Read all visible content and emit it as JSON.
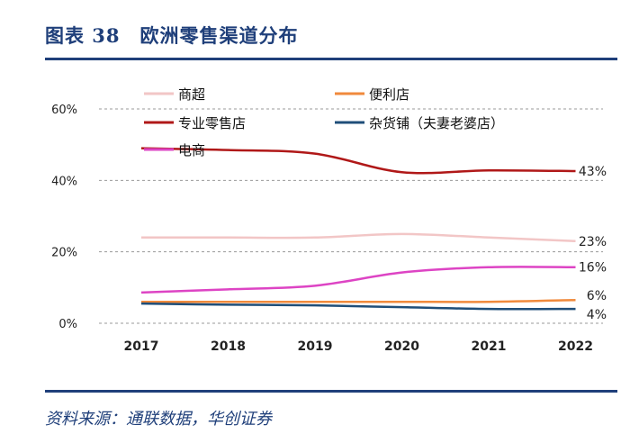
{
  "figure": {
    "title": "图表 38　欧洲零售渠道分布",
    "source": "资料来源：通联数据，华创证券"
  },
  "chart_data": {
    "type": "line",
    "x": [
      "2017",
      "2018",
      "2019",
      "2020",
      "2021",
      "2022"
    ],
    "y_ticks": [
      "0%",
      "20%",
      "40%",
      "60%"
    ],
    "ylim": [
      0,
      60
    ],
    "grid": "horizontal-dashed",
    "legend_position": "top-left",
    "series": [
      {
        "name": "商超",
        "color": "#f2c6c6",
        "values": [
          24,
          24,
          24,
          25,
          24,
          23
        ],
        "end_label": "23%"
      },
      {
        "name": "便利店",
        "color": "#f08a3c",
        "values": [
          6,
          6,
          6,
          6,
          6,
          6.5
        ],
        "end_label": "6%"
      },
      {
        "name": "专业零售店",
        "color": "#b01818",
        "values": [
          49,
          48.5,
          47.5,
          42.3,
          42.8,
          42.6
        ],
        "end_label": "43%"
      },
      {
        "name": "杂货铺（夫妻老婆店）",
        "color": "#1f4e79",
        "values": [
          5.5,
          5.2,
          5.0,
          4.5,
          4.0,
          4.0
        ],
        "end_label": "4%"
      },
      {
        "name": "电商",
        "color": "#dd44c4",
        "values": [
          8.6,
          9.5,
          10.5,
          14.2,
          15.7,
          15.7
        ],
        "end_label": "16%"
      }
    ]
  }
}
